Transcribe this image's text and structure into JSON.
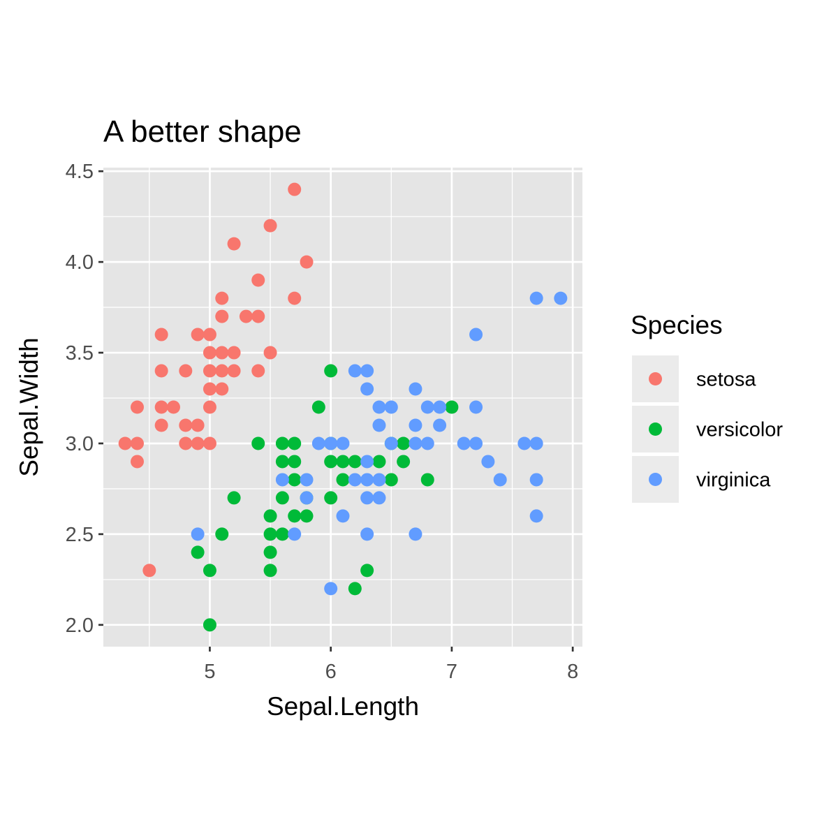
{
  "chart_data": {
    "type": "scatter",
    "title": "A better shape",
    "xlabel": "Sepal.Length",
    "ylabel": "Sepal.Width",
    "xlim": [
      4.12,
      8.08
    ],
    "ylim": [
      1.88,
      4.52
    ],
    "x_ticks": [
      5,
      6,
      7,
      8
    ],
    "x_tick_labels": [
      "5",
      "6",
      "7",
      "8"
    ],
    "y_ticks": [
      2.0,
      2.5,
      3.0,
      3.5,
      4.0,
      4.5
    ],
    "y_tick_labels": [
      "2.0",
      "2.5",
      "3.0",
      "3.5",
      "4.0",
      "4.5"
    ],
    "grid": true,
    "panel_background": "#e5e5e5",
    "legend": {
      "title": "Species",
      "position": "right",
      "key_background": "#ebebeb"
    },
    "series": [
      {
        "name": "setosa",
        "color": "#F8766D",
        "points": [
          [
            5.7,
            4.4
          ],
          [
            5.5,
            4.2
          ],
          [
            5.2,
            4.1
          ],
          [
            5.8,
            4.0
          ],
          [
            5.4,
            3.9
          ],
          [
            5.1,
            3.8
          ],
          [
            5.7,
            3.8
          ],
          [
            5.1,
            3.7
          ],
          [
            5.3,
            3.7
          ],
          [
            5.4,
            3.7
          ],
          [
            4.6,
            3.6
          ],
          [
            4.9,
            3.6
          ],
          [
            5.0,
            3.6
          ],
          [
            5.0,
            3.5
          ],
          [
            5.1,
            3.5
          ],
          [
            5.2,
            3.5
          ],
          [
            5.5,
            3.5
          ],
          [
            4.6,
            3.4
          ],
          [
            4.8,
            3.4
          ],
          [
            5.0,
            3.4
          ],
          [
            5.1,
            3.4
          ],
          [
            5.2,
            3.4
          ],
          [
            5.4,
            3.4
          ],
          [
            5.0,
            3.3
          ],
          [
            5.1,
            3.3
          ],
          [
            4.4,
            3.2
          ],
          [
            4.6,
            3.2
          ],
          [
            4.7,
            3.2
          ],
          [
            5.0,
            3.2
          ],
          [
            4.6,
            3.1
          ],
          [
            4.8,
            3.1
          ],
          [
            4.9,
            3.1
          ],
          [
            4.3,
            3.0
          ],
          [
            4.4,
            3.0
          ],
          [
            4.8,
            3.0
          ],
          [
            4.9,
            3.0
          ],
          [
            5.0,
            3.0
          ],
          [
            4.4,
            2.9
          ],
          [
            4.5,
            2.3
          ]
        ]
      },
      {
        "name": "versicolor",
        "color": "#00BA38",
        "points": [
          [
            6.0,
            3.4
          ],
          [
            5.9,
            3.2
          ],
          [
            7.0,
            3.2
          ],
          [
            6.6,
            3.0
          ],
          [
            6.5,
            3.0
          ],
          [
            5.4,
            3.0
          ],
          [
            5.6,
            3.0
          ],
          [
            5.7,
            3.0
          ],
          [
            6.0,
            2.9
          ],
          [
            5.6,
            2.9
          ],
          [
            5.7,
            2.9
          ],
          [
            6.1,
            2.9
          ],
          [
            6.2,
            2.9
          ],
          [
            6.4,
            2.9
          ],
          [
            6.6,
            2.9
          ],
          [
            6.0,
            3.0
          ],
          [
            5.7,
            2.8
          ],
          [
            6.1,
            2.8
          ],
          [
            6.5,
            2.8
          ],
          [
            6.8,
            2.8
          ],
          [
            5.2,
            2.7
          ],
          [
            5.6,
            2.7
          ],
          [
            5.8,
            2.7
          ],
          [
            6.0,
            2.7
          ],
          [
            5.5,
            2.6
          ],
          [
            5.7,
            2.6
          ],
          [
            5.8,
            2.6
          ],
          [
            4.9,
            2.4
          ],
          [
            5.1,
            2.5
          ],
          [
            5.5,
            2.5
          ],
          [
            5.6,
            2.5
          ],
          [
            5.5,
            2.4
          ],
          [
            5.0,
            2.3
          ],
          [
            5.5,
            2.3
          ],
          [
            6.3,
            2.3
          ],
          [
            6.2,
            2.2
          ],
          [
            5.0,
            2.0
          ]
        ]
      },
      {
        "name": "virginica",
        "color": "#619CFF",
        "points": [
          [
            7.7,
            3.8
          ],
          [
            7.9,
            3.8
          ],
          [
            7.2,
            3.6
          ],
          [
            6.2,
            3.4
          ],
          [
            6.3,
            3.4
          ],
          [
            6.3,
            3.3
          ],
          [
            6.7,
            3.3
          ],
          [
            6.4,
            3.2
          ],
          [
            6.5,
            3.2
          ],
          [
            6.8,
            3.2
          ],
          [
            6.9,
            3.2
          ],
          [
            7.2,
            3.2
          ],
          [
            6.4,
            3.1
          ],
          [
            6.7,
            3.1
          ],
          [
            6.9,
            3.1
          ],
          [
            5.9,
            3.0
          ],
          [
            6.0,
            3.0
          ],
          [
            6.1,
            3.0
          ],
          [
            6.5,
            3.0
          ],
          [
            6.7,
            3.0
          ],
          [
            6.8,
            3.0
          ],
          [
            7.1,
            3.0
          ],
          [
            7.2,
            3.0
          ],
          [
            7.6,
            3.0
          ],
          [
            7.7,
            3.0
          ],
          [
            6.3,
            2.9
          ],
          [
            7.3,
            2.9
          ],
          [
            5.6,
            2.8
          ],
          [
            5.8,
            2.8
          ],
          [
            6.2,
            2.8
          ],
          [
            6.3,
            2.8
          ],
          [
            6.4,
            2.8
          ],
          [
            7.4,
            2.8
          ],
          [
            7.7,
            2.8
          ],
          [
            5.8,
            2.7
          ],
          [
            6.3,
            2.7
          ],
          [
            6.4,
            2.7
          ],
          [
            6.1,
            2.6
          ],
          [
            7.7,
            2.6
          ],
          [
            4.9,
            2.5
          ],
          [
            5.7,
            2.5
          ],
          [
            6.3,
            2.5
          ],
          [
            6.7,
            2.5
          ],
          [
            6.0,
            2.2
          ]
        ]
      }
    ]
  }
}
